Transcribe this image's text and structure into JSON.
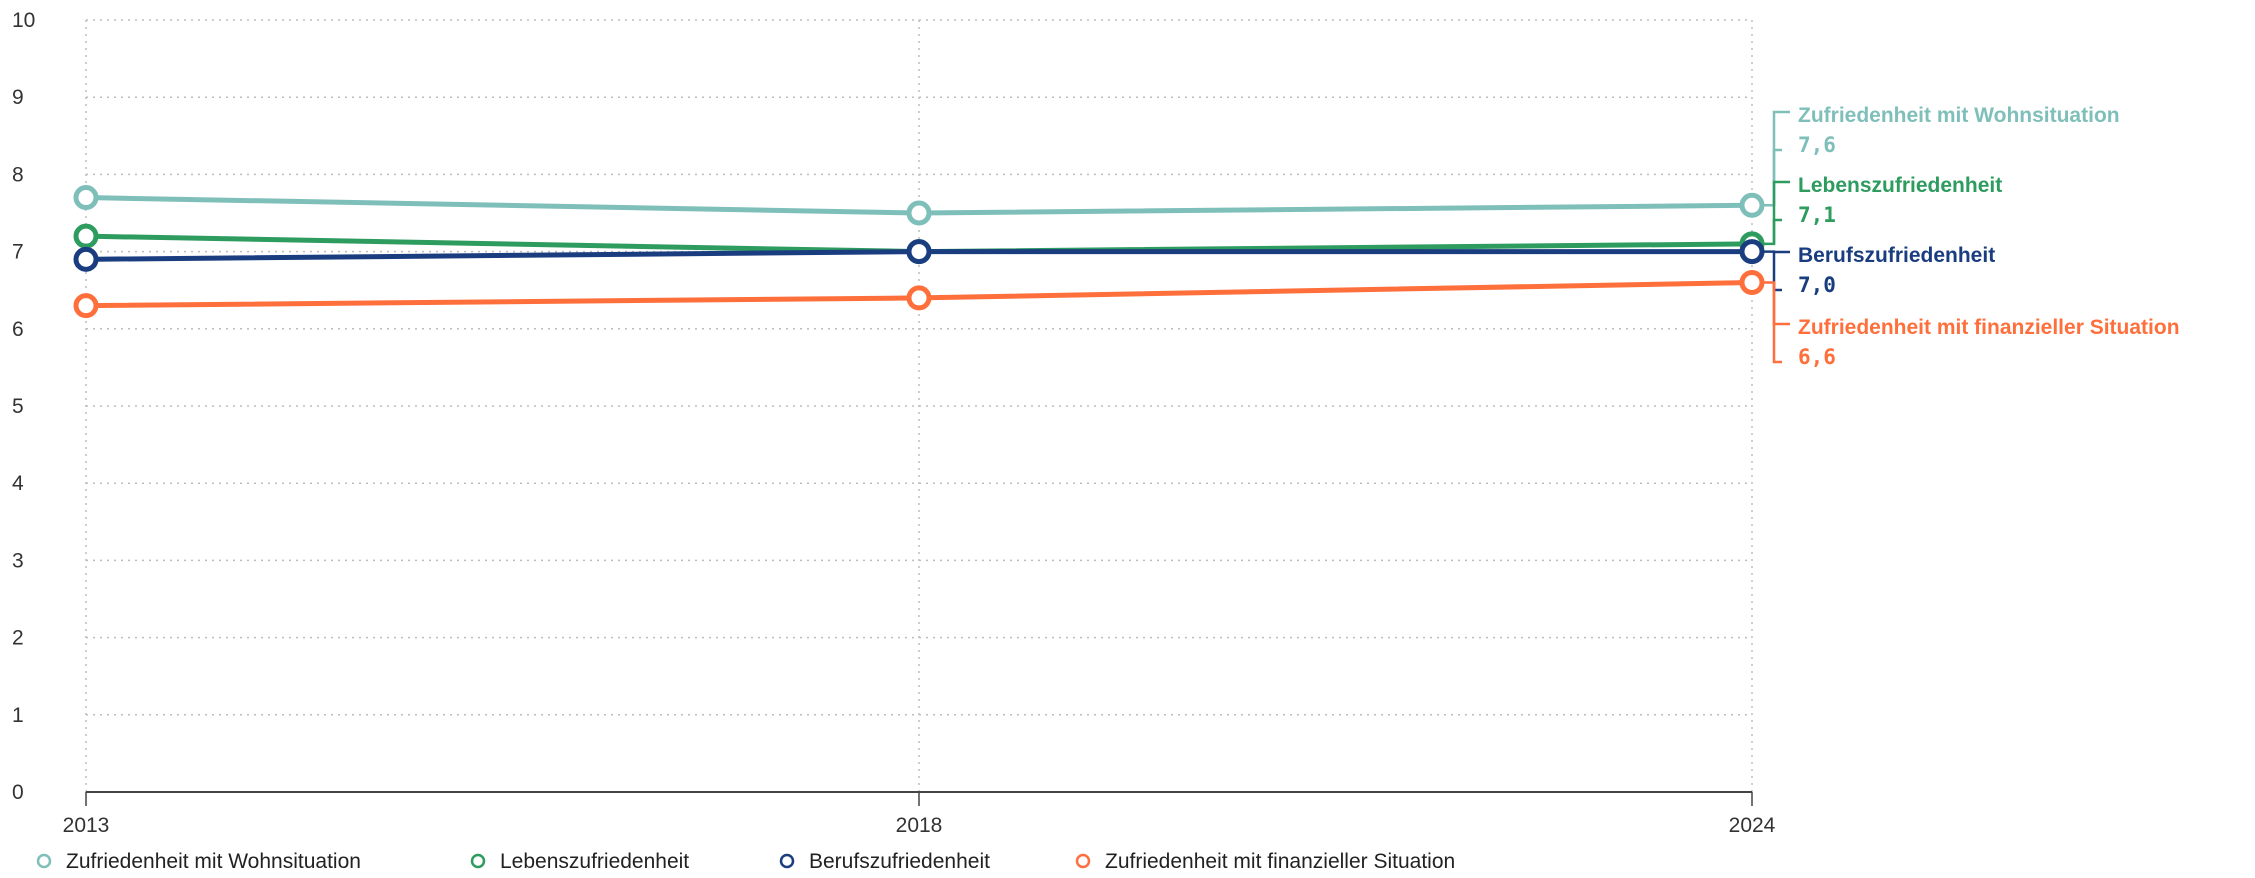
{
  "chart_data": {
    "type": "line",
    "x": [
      "2013",
      "2018",
      "2024"
    ],
    "ylim": [
      0,
      10
    ],
    "yticks": [
      "0",
      "1",
      "2",
      "3",
      "4",
      "5",
      "6",
      "7",
      "8",
      "9",
      "10"
    ],
    "grid": true,
    "legend_position": "bottom-left",
    "series": [
      {
        "name": "Zufriedenheit mit Wohnsituation",
        "values": [
          7.7,
          7.5,
          7.6
        ],
        "end_label": "7,6",
        "color": "#7fbfba"
      },
      {
        "name": "Lebenszufriedenheit",
        "values": [
          7.2,
          7.0,
          7.1
        ],
        "end_label": "7,1",
        "color": "#2e9b5f"
      },
      {
        "name": "Berufszufriedenheit",
        "values": [
          6.9,
          7.0,
          7.0
        ],
        "end_label": "7,0",
        "color": "#1a3d80"
      },
      {
        "name": "Zufriedenheit mit finanzieller Situation",
        "values": [
          6.3,
          6.4,
          6.6
        ],
        "end_label": "6,6",
        "color": "#ff6f3c"
      }
    ]
  }
}
